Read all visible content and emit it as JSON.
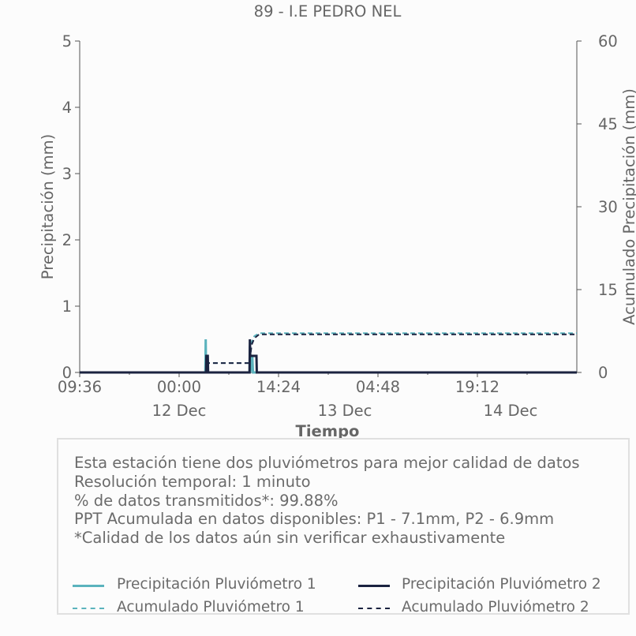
{
  "chart_data": {
    "type": "line",
    "title": "89 - I.E PEDRO NEL",
    "xlabel": "Tiempo",
    "ylabel": "Precipitación (mm)",
    "ylabel_right": "Acumulado Precipitación (mm)",
    "x_unit": "hours since 11 Dec 09:36",
    "xlim": [
      0,
      72
    ],
    "ylim": [
      0,
      5
    ],
    "ylim_right": [
      0,
      60
    ],
    "yticks": [
      0,
      1,
      2,
      3,
      4,
      5
    ],
    "yticks_right": [
      0,
      15,
      30,
      45,
      60
    ],
    "xticks": [
      {
        "x": 0,
        "label": "09:36"
      },
      {
        "x": 14.4,
        "label": "00:00"
      },
      {
        "x": 28.8,
        "label": "14:24"
      },
      {
        "x": 43.2,
        "label": "04:48"
      },
      {
        "x": 57.6,
        "label": "19:12"
      }
    ],
    "date_labels": [
      {
        "x": 14.4,
        "label": "12 Dec"
      },
      {
        "x": 38.4,
        "label": "13 Dec"
      },
      {
        "x": 62.4,
        "label": "14 Dec"
      }
    ],
    "series": [
      {
        "name": "Precipitación Pluviómetro 1",
        "axis": "left",
        "style": "solid",
        "color": "#5bb3bd",
        "points": [
          [
            0,
            0
          ],
          [
            18.2,
            0
          ],
          [
            18.25,
            0.5
          ],
          [
            18.3,
            0
          ],
          [
            24.6,
            0
          ],
          [
            24.65,
            0.4
          ],
          [
            24.7,
            0
          ],
          [
            25.0,
            0.25
          ],
          [
            25.1,
            0
          ],
          [
            72,
            0
          ]
        ]
      },
      {
        "name": "Precipitación Pluviómetro 2",
        "axis": "left",
        "style": "solid",
        "color": "#1b2340",
        "points": [
          [
            0,
            0
          ],
          [
            18.3,
            0
          ],
          [
            18.35,
            0.25
          ],
          [
            18.55,
            0.25
          ],
          [
            18.6,
            0
          ],
          [
            24.6,
            0
          ],
          [
            24.65,
            0.5
          ],
          [
            24.7,
            0.25
          ],
          [
            25.6,
            0.25
          ],
          [
            25.65,
            0
          ],
          [
            72,
            0
          ]
        ]
      },
      {
        "name": "Acumulado Pluviómetro 1",
        "axis": "right",
        "style": "dashed",
        "color": "#5bb3bd",
        "points": [
          [
            0,
            0
          ],
          [
            18.2,
            0
          ],
          [
            18.3,
            1.7
          ],
          [
            24.6,
            1.7
          ],
          [
            24.9,
            5.5
          ],
          [
            25.3,
            6.6
          ],
          [
            26,
            7.1
          ],
          [
            72,
            7.1
          ]
        ]
      },
      {
        "name": "Acumulado Pluviómetro 2",
        "axis": "right",
        "style": "dashed",
        "color": "#1b2340",
        "points": [
          [
            0,
            0
          ],
          [
            18.3,
            0
          ],
          [
            18.4,
            1.7
          ],
          [
            24.6,
            1.7
          ],
          [
            24.9,
            5.0
          ],
          [
            25.3,
            6.2
          ],
          [
            26,
            6.9
          ],
          [
            72,
            6.9
          ]
        ]
      }
    ]
  },
  "info": {
    "lines": [
      "Esta estación tiene dos pluviómetros para mejor calidad de datos",
      "Resolución temporal: 1 minuto",
      "% de datos transmitidos*: 99.88%",
      "PPT Acumulada en datos disponibles: P1 - 7.1mm, P2 - 6.9mm",
      "*Calidad de los datos aún sin verificar exhaustivamente"
    ]
  },
  "legend": [
    {
      "label": "Precipitación Pluviómetro 1",
      "color": "#5bb3bd",
      "style": "solid"
    },
    {
      "label": "Precipitación Pluviómetro 2",
      "color": "#1b2340",
      "style": "solid"
    },
    {
      "label": "Acumulado Pluviómetro 1",
      "color": "#5bb3bd",
      "style": "dashed"
    },
    {
      "label": "Acumulado Pluviómetro 2",
      "color": "#1b2340",
      "style": "dashed"
    }
  ]
}
